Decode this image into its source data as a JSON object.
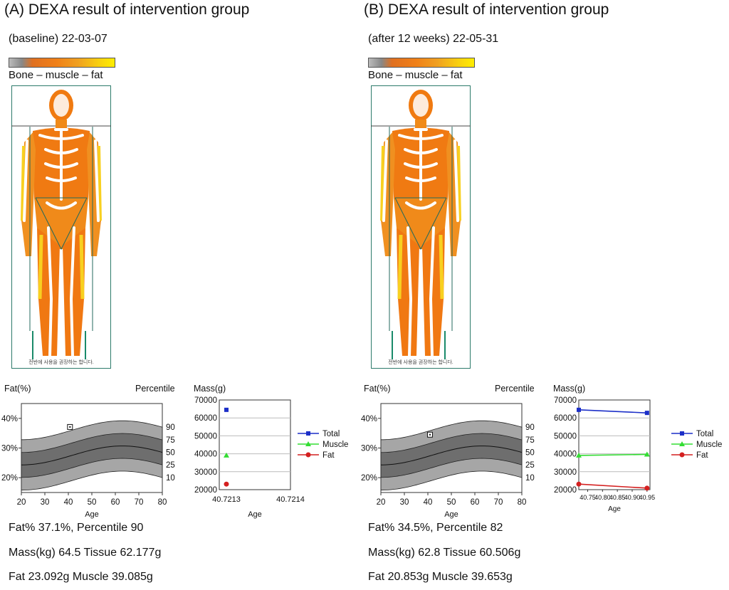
{
  "panels": [
    {
      "title": "(A) DEXA result of intervention group",
      "date_label": "(baseline) 22-03-07",
      "colorbar_label": "Bone – muscle – fat",
      "scan_note": "전반에 사용을 권장하는 합니다.",
      "fat_chart_ylabel": "Fat(%)",
      "percentile_label": "Percentile",
      "mass_chart_ylabel": "Mass(g)",
      "stats": {
        "line1": "Fat% 37.1%, Percentile 90",
        "line2": "Mass(kg) 64.5 Tissue 62.177g",
        "line3": "Fat 23.092g Muscle 39.085g"
      }
    },
    {
      "title": "(B) DEXA result of intervention group",
      "date_label": "(after 12 weeks) 22-05-31",
      "colorbar_label": "Bone – muscle – fat",
      "scan_note": "전반에 사용을 권장하는 합니다.",
      "fat_chart_ylabel": "Fat(%)",
      "percentile_label": "Percentile",
      "mass_chart_ylabel": "Mass(g)",
      "stats": {
        "line1": "Fat% 34.5%, Percentile 82",
        "line2": "Mass(kg) 62.8 Tissue 60.506g",
        "line3": "Fat 20.853g Muscle 39.653g"
      }
    }
  ],
  "chart_data": [
    {
      "type": "area",
      "panel": "A",
      "xlabel": "Age",
      "ylabel": "Fat(%)",
      "xlim": [
        20,
        80
      ],
      "ylim": [
        15,
        45
      ],
      "x_ticks": [
        "20",
        "30",
        "40",
        "50",
        "60",
        "70",
        "80"
      ],
      "y_ticks": [
        "20%",
        "30%",
        "40%"
      ],
      "percentile_ticks": [
        "10",
        "25",
        "50",
        "75",
        "90"
      ],
      "patient_point": {
        "x": 40.7,
        "y": 37.1
      }
    },
    {
      "type": "scatter",
      "panel": "A",
      "xlabel": "Age",
      "ylabel": "Mass(g)",
      "ylim": [
        20000,
        70000
      ],
      "x_ticks": [
        "40.7213",
        "40.7214"
      ],
      "y_ticks": [
        "20000",
        "30000",
        "40000",
        "50000",
        "60000",
        "70000"
      ],
      "series": [
        {
          "name": "Total",
          "color": "#1c2fc8",
          "marker": "square",
          "values": [
            64500
          ]
        },
        {
          "name": "Muscle",
          "color": "#33dd33",
          "marker": "triangle",
          "values": [
            39085
          ]
        },
        {
          "name": "Fat",
          "color": "#d42020",
          "marker": "circle",
          "values": [
            23092
          ]
        }
      ]
    },
    {
      "type": "area",
      "panel": "B",
      "xlabel": "Age",
      "ylabel": "Fat(%)",
      "xlim": [
        20,
        80
      ],
      "ylim": [
        15,
        45
      ],
      "x_ticks": [
        "20",
        "30",
        "40",
        "50",
        "60",
        "70",
        "80"
      ],
      "y_ticks": [
        "20%",
        "30%",
        "40%"
      ],
      "percentile_ticks": [
        "10",
        "25",
        "50",
        "75",
        "90"
      ],
      "patient_point": {
        "x": 40.9,
        "y": 34.5
      }
    },
    {
      "type": "line",
      "panel": "B",
      "xlabel": "Age",
      "ylabel": "Mass(g)",
      "xlim": [
        40.72,
        40.96
      ],
      "ylim": [
        20000,
        70000
      ],
      "x_ticks": [
        "40.75",
        "40.80",
        "40.85",
        "40.90",
        "40.95"
      ],
      "y_ticks": [
        "20000",
        "30000",
        "40000",
        "50000",
        "60000",
        "70000"
      ],
      "x": [
        40.72,
        40.95
      ],
      "series": [
        {
          "name": "Total",
          "color": "#1c2fc8",
          "marker": "square",
          "values": [
            64500,
            62800
          ]
        },
        {
          "name": "Muscle",
          "color": "#33dd33",
          "marker": "triangle",
          "values": [
            39085,
            39653
          ]
        },
        {
          "name": "Fat",
          "color": "#d42020",
          "marker": "circle",
          "values": [
            23092,
            20853
          ]
        }
      ]
    }
  ]
}
